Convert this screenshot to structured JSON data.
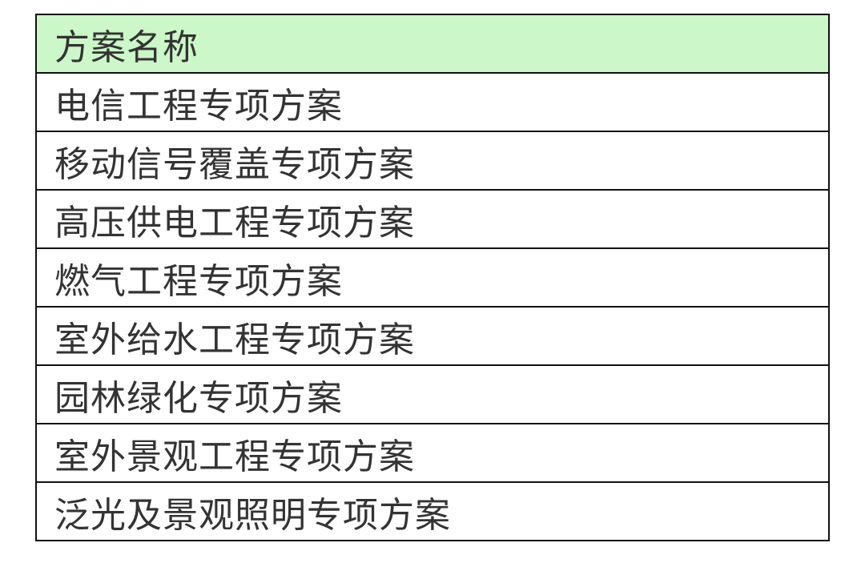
{
  "table": {
    "header": "方案名称",
    "header_bg": "#ccf7c8",
    "rows": [
      "电信工程专项方案",
      "移动信号覆盖专项方案",
      "高压供电工程专项方案",
      "燃气工程专项方案",
      "室外给水工程专项方案",
      "园林绿化专项方案",
      "室外景观工程专项方案",
      "泛光及景观照明专项方案"
    ]
  }
}
